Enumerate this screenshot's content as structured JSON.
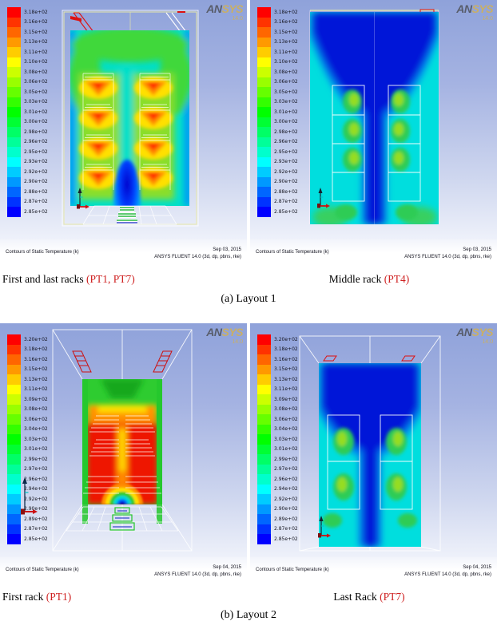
{
  "captions": {
    "a": "(a) Layout 1",
    "b": "(b) Layout 2"
  },
  "row_labels": {
    "top_left_text": "First and last racks ",
    "top_left_red": "(PT1, PT7)",
    "top_right_text": "Middle rack ",
    "top_right_red": "(PT4)",
    "bottom_left_text": "First rack ",
    "bottom_left_red": "(PT1)",
    "bottom_right_text": "Last Rack ",
    "bottom_right_red": "(PT7)"
  },
  "watermark": {
    "brand_left": "AN",
    "brand_right": "SYS",
    "version": "14.0"
  },
  "colors": {
    "label_red": "#cf2222",
    "viewport_top": "#8fa2da",
    "viewport_bottom": "#eef1fa"
  },
  "legend_colors": [
    "#ff0000",
    "#ff3300",
    "#ff6600",
    "#ff9900",
    "#ffcc00",
    "#ffff00",
    "#ccff00",
    "#99ff00",
    "#66ff00",
    "#33ff00",
    "#00ff00",
    "#00ff33",
    "#00ff66",
    "#00ff99",
    "#00ffcc",
    "#00ffff",
    "#00ccff",
    "#0099ff",
    "#0066ff",
    "#0033ff",
    "#0000ff"
  ],
  "panels": [
    {
      "name": "Layout 1 - First and last racks (PT1, PT7)",
      "legend": [
        "3.18e+02",
        "3.16e+02",
        "3.15e+02",
        "3.13e+02",
        "3.11e+02",
        "3.10e+02",
        "3.08e+02",
        "3.06e+02",
        "3.05e+02",
        "3.03e+02",
        "3.01e+02",
        "3.00e+02",
        "2.98e+02",
        "2.96e+02",
        "2.95e+02",
        "2.93e+02",
        "2.92e+02",
        "2.90e+02",
        "2.88e+02",
        "2.87e+02",
        "2.85e+02"
      ],
      "footer_left": "Contours of Static Temperature (k)",
      "footer_date": "Sep 03, 2015",
      "footer_app": "ANSYS FLUENT 14.0 (3d, dp, pbns, rke)"
    },
    {
      "name": "Layout 1 - Middle rack (PT4)",
      "legend": [
        "3.18e+02",
        "3.16e+02",
        "3.15e+02",
        "3.13e+02",
        "3.11e+02",
        "3.10e+02",
        "3.08e+02",
        "3.06e+02",
        "3.05e+02",
        "3.03e+02",
        "3.01e+02",
        "3.00e+02",
        "2.98e+02",
        "2.96e+02",
        "2.95e+02",
        "2.93e+02",
        "2.92e+02",
        "2.90e+02",
        "2.88e+02",
        "2.87e+02",
        "2.85e+02"
      ],
      "footer_left": "Contours of Static Temperature (k)",
      "footer_date": "Sep 03, 2015",
      "footer_app": "ANSYS FLUENT 14.0 (3d, dp, pbns, rke)"
    },
    {
      "name": "Layout 2 - First rack (PT1)",
      "legend": [
        "3.20e+02",
        "3.18e+02",
        "3.16e+02",
        "3.15e+02",
        "3.13e+02",
        "3.11e+02",
        "3.09e+02",
        "3.08e+02",
        "3.06e+02",
        "3.04e+02",
        "3.03e+02",
        "3.01e+02",
        "2.99e+02",
        "2.97e+02",
        "2.96e+02",
        "2.94e+02",
        "2.92e+02",
        "2.90e+02",
        "2.89e+02",
        "2.87e+02",
        "2.85e+02"
      ],
      "footer_left": "Contours of Static Temperature (k)",
      "footer_date": "Sep 04, 2015",
      "footer_app": "ANSYS FLUENT 14.0 (3d, dp, pbns, rke)"
    },
    {
      "name": "Layout 2 - Last Rack (PT7)",
      "legend": [
        "3.20e+02",
        "3.18e+02",
        "3.16e+02",
        "3.15e+02",
        "3.13e+02",
        "3.11e+02",
        "3.09e+02",
        "3.08e+02",
        "3.06e+02",
        "3.04e+02",
        "3.03e+02",
        "3.01e+02",
        "2.99e+02",
        "2.97e+02",
        "2.96e+02",
        "2.94e+02",
        "2.92e+02",
        "2.90e+02",
        "2.89e+02",
        "2.87e+02",
        "2.85e+02"
      ],
      "footer_left": "Contours of Static Temperature (k)",
      "footer_date": "Sep 04, 2015",
      "footer_app": "ANSYS FLUENT 14.0 (3d, dp, pbns, rke)"
    }
  ]
}
